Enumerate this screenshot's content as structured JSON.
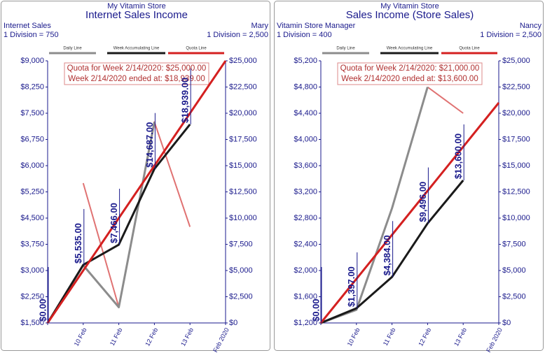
{
  "chart_data": [
    {
      "type": "line",
      "store": "My Vitamin Store",
      "title": "Internet Sales Income",
      "left_label": "Internet Sales",
      "left_division": "1 Division = 750",
      "right_label": "Mary",
      "right_division": "1 Division = 2,500",
      "annotations": [
        "Quota for Week 2/14/2020: $25,000.00",
        "Week 2/14/2020 ended at: $18,939.00"
      ],
      "categories": [
        null,
        "10 Feb",
        "11 Feb",
        "12 Feb",
        "13 Feb",
        "14 Feb 2020"
      ],
      "series": [
        {
          "name": "Daily Line",
          "color": "#8c8c8c",
          "axis": "y",
          "values": [
            1500,
            3150,
            1950,
            7250,
            null,
            null
          ]
        },
        {
          "name": "Week Accumulating Line",
          "color": "#1a1a1a",
          "axis": "y2",
          "values": [
            0,
            5535,
            7466,
            14687,
            18939,
            null
          ],
          "value_labels": [
            "$0.00",
            "$5,535.00",
            "$7,466.00",
            "$14,687.00",
            "$18,939.00",
            null
          ]
        },
        {
          "name": "Quota Line",
          "color": "#d42020",
          "axis": "y2",
          "values": [
            0,
            5000,
            10000,
            15000,
            20000,
            25000
          ]
        },
        {
          "color": "#e07272",
          "axis": "y",
          "values": [
            null,
            5500,
            1950,
            7250,
            4250,
            null
          ]
        }
      ],
      "ylim": [
        1500,
        9000
      ],
      "yticks": [
        {
          "value": 1500,
          "label": "$1,500"
        },
        {
          "value": 2250,
          "label": "$2,250"
        },
        {
          "value": 3000,
          "label": "$3,000"
        },
        {
          "value": 3750,
          "label": "$3,750"
        },
        {
          "value": 4500,
          "label": "$4,500"
        },
        {
          "value": 5250,
          "label": "$5,250"
        },
        {
          "value": 6000,
          "label": "$6,000"
        },
        {
          "value": 6750,
          "label": "$6,750"
        },
        {
          "value": 7500,
          "label": "$7,500"
        },
        {
          "value": 8250,
          "label": "$8,250"
        },
        {
          "value": 9000,
          "label": "$9,000"
        }
      ],
      "y2lim": [
        0,
        25000
      ],
      "y2ticks": [
        {
          "value": 0,
          "label": "$0"
        },
        {
          "value": 2500,
          "label": "$2,500"
        },
        {
          "value": 5000,
          "label": "$5,000"
        },
        {
          "value": 7500,
          "label": "$7,500"
        },
        {
          "value": 10000,
          "label": "$10,000"
        },
        {
          "value": 12500,
          "label": "$12,500"
        },
        {
          "value": 15000,
          "label": "$15,000"
        },
        {
          "value": 17500,
          "label": "$17,500"
        },
        {
          "value": 20000,
          "label": "$20,000"
        },
        {
          "value": 22500,
          "label": "$22,500"
        },
        {
          "value": 25000,
          "label": "$25,000"
        }
      ]
    },
    {
      "type": "line",
      "store": "My Vitamin Store",
      "title": "Sales Income (Store Sales)",
      "left_label": "Vitamin Store Manager",
      "left_division": "1 Division = 400",
      "right_label": "Nancy",
      "right_division": "1 Division = 2,500",
      "annotations": [
        "Quota for Week 2/14/2020: $21,000.00",
        "Week 2/14/2020 ended at: $13,600.00"
      ],
      "categories": [
        null,
        "10 Feb",
        "11 Feb",
        "12 Feb",
        "13 Feb",
        "14 Feb 2020"
      ],
      "series": [
        {
          "name": "Daily Line",
          "color": "#8c8c8c",
          "axis": "y",
          "values": [
            1200,
            1400,
            2950,
            4800,
            null,
            null
          ]
        },
        {
          "name": "Week Accumulating Line",
          "color": "#1a1a1a",
          "axis": "y2",
          "values": [
            0,
            1397,
            4384,
            9496,
            13600,
            null
          ],
          "value_labels": [
            "$0.00",
            "$1,397.00",
            "$4,384.00",
            "$9,496.00",
            "$13,600.00",
            null
          ]
        },
        {
          "name": "Quota Line",
          "color": "#d42020",
          "axis": "y2",
          "values": [
            0,
            4200,
            8400,
            12600,
            16800,
            21000
          ]
        },
        {
          "color": "#e07272",
          "axis": "y",
          "values": [
            null,
            null,
            null,
            4800,
            4400,
            null
          ]
        }
      ],
      "ylim": [
        1200,
        5200
      ],
      "yticks": [
        {
          "value": 1200,
          "label": "$1,200"
        },
        {
          "value": 1600,
          "label": "$1,600"
        },
        {
          "value": 2000,
          "label": "$2,000"
        },
        {
          "value": 2400,
          "label": "$2,400"
        },
        {
          "value": 2800,
          "label": "$2,800"
        },
        {
          "value": 3200,
          "label": "$3,200"
        },
        {
          "value": 3600,
          "label": "$3,600"
        },
        {
          "value": 4000,
          "label": "$4,000"
        },
        {
          "value": 4400,
          "label": "$4,400"
        },
        {
          "value": 4800,
          "label": "$4,800"
        },
        {
          "value": 5200,
          "label": "$5,200"
        }
      ],
      "y2lim": [
        0,
        25000
      ],
      "y2ticks": [
        {
          "value": 0,
          "label": "$0"
        },
        {
          "value": 2500,
          "label": "$2,500"
        },
        {
          "value": 5000,
          "label": "$5,000"
        },
        {
          "value": 7500,
          "label": "$7,500"
        },
        {
          "value": 10000,
          "label": "$10,000"
        },
        {
          "value": 12500,
          "label": "$12,500"
        },
        {
          "value": 15000,
          "label": "$15,000"
        },
        {
          "value": 17500,
          "label": "$17,500"
        },
        {
          "value": 20000,
          "label": "$20,000"
        },
        {
          "value": 22500,
          "label": "$22,500"
        },
        {
          "value": 25000,
          "label": "$25,000"
        }
      ]
    }
  ]
}
